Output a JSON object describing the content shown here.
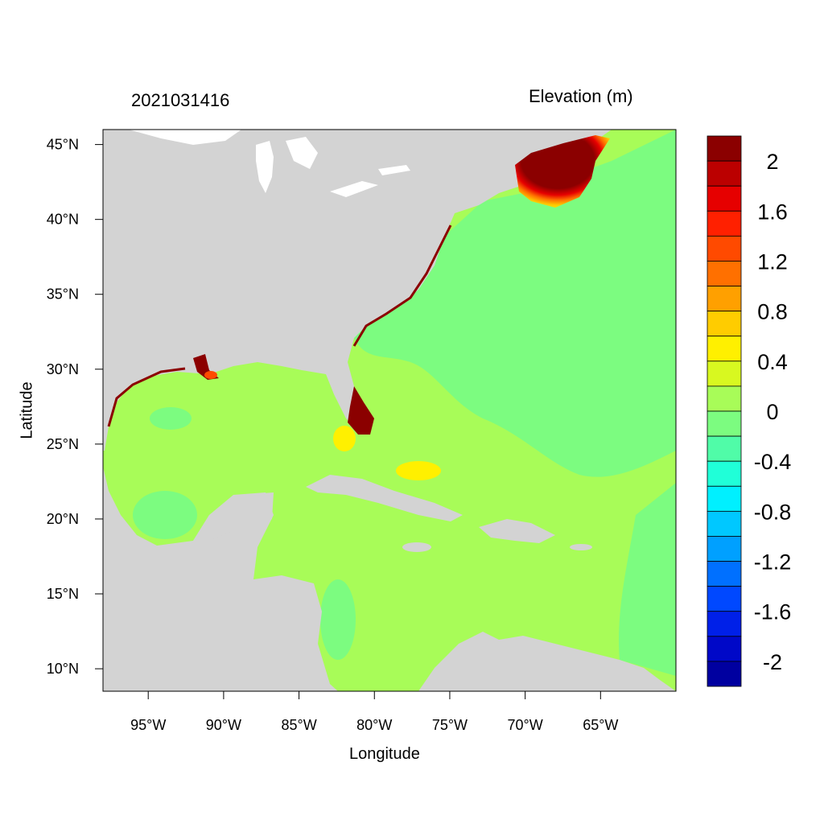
{
  "map": {
    "timestamp": "2021031416",
    "variable_label": "Elevation (m)",
    "x_axis_label": "Longitude",
    "y_axis_label": "Latitude",
    "x_ticks": [
      "95°W",
      "90°W",
      "85°W",
      "80°W",
      "75°W",
      "70°W",
      "65°W"
    ],
    "y_ticks": [
      "45°N",
      "40°N",
      "35°N",
      "30°N",
      "25°N",
      "20°N",
      "15°N",
      "10°N"
    ],
    "lon_range": [
      -98,
      -60
    ],
    "lat_range": [
      8.5,
      46
    ],
    "colorbar": {
      "labels": [
        "2",
        "1.6",
        "1.2",
        "0.8",
        "0.4",
        "0",
        "-0.4",
        "-0.8",
        "-1.2",
        "-1.6",
        "-2"
      ],
      "colors": [
        "#8b0000",
        "#bb0000",
        "#e60000",
        "#ff2000",
        "#ff4a00",
        "#ff7000",
        "#ffa000",
        "#ffcc00",
        "#fff000",
        "#d8f820",
        "#a8fc58",
        "#7cfc80",
        "#50fca8",
        "#20ffd8",
        "#00f0ff",
        "#00c8ff",
        "#00a0ff",
        "#0070ff",
        "#0048ff",
        "#0020e8",
        "#0008c8",
        "#0000a0"
      ]
    },
    "colors": {
      "land": "#d3d3d3",
      "water_zero": "#a8fc58",
      "water_slight_negative": "#7cfc80",
      "surge_high": "#8b0000"
    }
  }
}
